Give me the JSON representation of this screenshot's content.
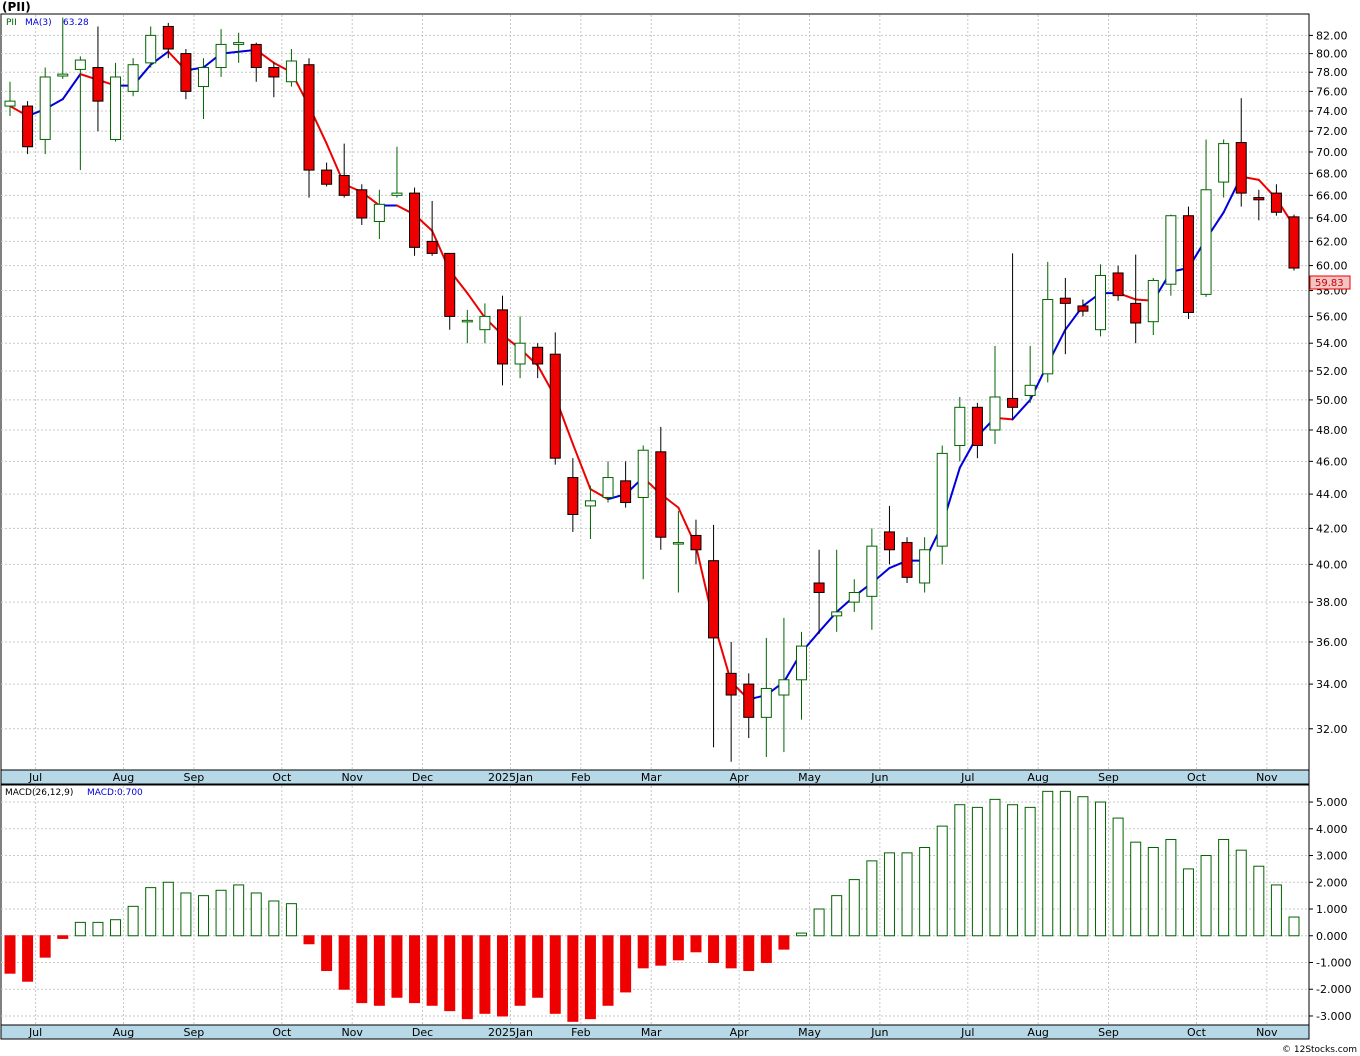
{
  "header": {
    "symbol_label": "(PII)"
  },
  "price_panel": {
    "legend_symbol": "PII",
    "legend_ma": "MA(3)",
    "legend_ma_value": "63.28",
    "last_price_label": "59.83"
  },
  "macd_panel": {
    "legend_params": "MACD(26,12,9)",
    "legend_value": "MACD:0.700"
  },
  "footer": {
    "credit": "© 12Stocks.com"
  },
  "colors": {
    "up_candle": "#006400",
    "down_candle": "#ee0000",
    "ma_up": "#0000dd",
    "ma_down": "#ee0000",
    "axis_band": "#b7d8e6",
    "last_price_box": "#f2c4c4"
  },
  "chart_data": [
    {
      "type": "candlestick",
      "title": "(PII)",
      "period": "weekly",
      "ylim": [
        30.3,
        84.3
      ],
      "y_scale": "log",
      "y_ticks": [
        32,
        34,
        36,
        38,
        40,
        42,
        44,
        46,
        48,
        50,
        52,
        54,
        56,
        58,
        60,
        62,
        64,
        66,
        68,
        70,
        72,
        74,
        76,
        78,
        80,
        82
      ],
      "x_tick_labels": [
        {
          "label": "Jul",
          "bar": 1
        },
        {
          "label": "Aug",
          "bar": 6
        },
        {
          "label": "Sep",
          "bar": 10
        },
        {
          "label": "Oct",
          "bar": 15
        },
        {
          "label": "Nov",
          "bar": 19
        },
        {
          "label": "Dec",
          "bar": 23
        },
        {
          "label": "2025Jan",
          "bar": 28
        },
        {
          "label": "Feb",
          "bar": 32
        },
        {
          "label": "Mar",
          "bar": 36
        },
        {
          "label": "Apr",
          "bar": 41
        },
        {
          "label": "May",
          "bar": 45
        },
        {
          "label": "Jun",
          "bar": 49
        },
        {
          "label": "Jul",
          "bar": 54
        },
        {
          "label": "Aug",
          "bar": 58
        },
        {
          "label": "Sep",
          "bar": 62
        },
        {
          "label": "Oct",
          "bar": 67
        },
        {
          "label": "Nov",
          "bar": 71
        }
      ],
      "ohlc": [
        [
          74.5,
          77.0,
          73.5,
          75.0
        ],
        [
          74.5,
          75.0,
          69.8,
          70.5
        ],
        [
          71.2,
          78.5,
          69.8,
          77.5
        ],
        [
          77.6,
          84.0,
          77.3,
          77.8
        ],
        [
          78.3,
          79.7,
          68.3,
          79.3
        ],
        [
          78.5,
          83.0,
          72.0,
          75.0
        ],
        [
          71.2,
          79.0,
          71.0,
          77.5
        ],
        [
          76.0,
          79.5,
          75.5,
          78.8
        ],
        [
          79.0,
          83.0,
          78.5,
          82.0
        ],
        [
          83.0,
          83.4,
          79.5,
          80.5
        ],
        [
          80.0,
          80.5,
          75.2,
          76.0
        ],
        [
          76.5,
          79.5,
          73.2,
          78.5
        ],
        [
          78.5,
          82.7,
          77.5,
          81.0
        ],
        [
          81.0,
          82.3,
          79.0,
          81.2
        ],
        [
          81.0,
          81.2,
          77.0,
          78.5
        ],
        [
          78.5,
          79.0,
          75.4,
          77.5
        ],
        [
          77.0,
          80.5,
          76.5,
          79.2
        ],
        [
          78.8,
          79.5,
          65.8,
          68.3
        ],
        [
          68.3,
          69.0,
          66.8,
          67.0
        ],
        [
          67.8,
          70.8,
          65.8,
          66.0
        ],
        [
          66.5,
          67.0,
          63.4,
          64.0
        ],
        [
          63.7,
          66.5,
          62.2,
          65.2
        ],
        [
          66.0,
          70.5,
          65.8,
          66.2
        ],
        [
          66.2,
          66.7,
          60.8,
          61.5
        ],
        [
          62.0,
          65.5,
          60.8,
          61.0
        ],
        [
          61.0,
          60.8,
          55.0,
          56.0
        ],
        [
          55.7,
          56.5,
          54.0,
          55.7
        ],
        [
          55.0,
          57.0,
          54.0,
          56.0
        ],
        [
          56.5,
          57.6,
          51.0,
          52.5
        ],
        [
          52.5,
          56.0,
          51.5,
          54.0
        ],
        [
          53.7,
          54.0,
          51.5,
          52.5
        ],
        [
          53.2,
          54.8,
          45.8,
          46.2
        ],
        [
          45.0,
          46.2,
          41.8,
          42.8
        ],
        [
          43.3,
          44.5,
          41.4,
          43.6
        ],
        [
          43.8,
          46.0,
          43.5,
          45.0
        ],
        [
          44.8,
          46.0,
          43.2,
          43.5
        ],
        [
          43.8,
          47.0,
          39.2,
          46.7
        ],
        [
          46.6,
          48.2,
          40.8,
          41.5
        ],
        [
          41.2,
          43.0,
          38.5,
          41.2
        ],
        [
          41.6,
          42.5,
          40.0,
          40.8
        ],
        [
          40.2,
          42.2,
          31.2,
          36.2
        ],
        [
          34.5,
          36.0,
          30.6,
          33.5
        ],
        [
          34.0,
          34.5,
          31.6,
          32.5
        ],
        [
          32.5,
          36.2,
          30.8,
          33.8
        ],
        [
          33.5,
          37.2,
          31.0,
          34.2
        ],
        [
          34.2,
          36.5,
          32.4,
          35.8
        ],
        [
          39.0,
          40.8,
          36.4,
          38.5
        ],
        [
          37.3,
          40.8,
          36.5,
          37.5
        ],
        [
          38.0,
          39.2,
          37.5,
          38.5
        ],
        [
          38.3,
          42.0,
          36.6,
          41.0
        ],
        [
          41.8,
          43.3,
          40.0,
          40.8
        ],
        [
          41.2,
          41.5,
          39.0,
          39.3
        ],
        [
          39.0,
          41.5,
          38.5,
          40.8
        ],
        [
          41.0,
          47.0,
          40.0,
          46.5
        ],
        [
          47.0,
          50.2,
          46.0,
          49.5
        ],
        [
          49.5,
          49.8,
          46.2,
          47.0
        ],
        [
          48.0,
          53.8,
          47.1,
          50.2
        ],
        [
          50.1,
          61.0,
          48.7,
          49.5
        ],
        [
          50.3,
          53.8,
          49.8,
          51.0
        ],
        [
          51.8,
          60.3,
          51.2,
          57.3
        ],
        [
          57.4,
          59.0,
          53.2,
          57.0
        ],
        [
          56.8,
          57.3,
          56.0,
          56.4
        ],
        [
          55.0,
          60.1,
          54.5,
          59.2
        ],
        [
          59.4,
          60.0,
          57.2,
          57.6
        ],
        [
          57.0,
          60.9,
          54.0,
          55.5
        ],
        [
          55.6,
          59.0,
          54.6,
          58.8
        ],
        [
          58.5,
          64.3,
          57.6,
          64.2
        ],
        [
          64.2,
          65.0,
          55.8,
          56.3
        ],
        [
          57.7,
          71.2,
          57.5,
          66.5
        ],
        [
          67.2,
          71.2,
          65.8,
          70.8
        ],
        [
          70.9,
          75.3,
          65.0,
          66.2
        ],
        [
          65.8,
          66.5,
          63.8,
          65.6
        ],
        [
          66.2,
          67.0,
          64.2,
          64.5
        ],
        [
          64.1,
          64.3,
          59.6,
          59.8
        ]
      ],
      "series": [
        {
          "name": "MA(3)",
          "values": [
            74.5,
            73.5,
            74.2,
            75.2,
            77.8,
            77.2,
            76.6,
            76.6,
            78.8,
            80.2,
            78.2,
            78.5,
            80.0,
            80.2,
            80.4,
            79.0,
            78.0,
            74.5,
            70.8,
            67.0,
            66.3,
            65.1,
            65.1,
            64.3,
            62.9,
            59.6,
            57.8,
            55.9,
            54.6,
            53.6,
            52.4,
            50.2,
            47.1,
            44.3,
            43.7,
            44.0,
            45.0,
            44.0,
            43.2,
            41.0,
            37.0,
            34.1,
            33.3,
            33.5,
            34.1,
            35.5,
            36.5,
            37.5,
            38.3,
            39.0,
            39.8,
            40.2,
            40.2,
            42.2,
            45.6,
            47.6,
            48.8,
            48.7,
            50.0,
            52.5,
            55.0,
            56.8,
            57.8,
            57.8,
            57.3,
            57.2,
            59.5,
            59.8,
            62.2,
            64.5,
            67.7,
            67.4,
            65.7,
            63.3
          ]
        }
      ]
    },
    {
      "type": "bar",
      "title": "MACD(26,12,9)",
      "ylim": [
        -3.3,
        5.6
      ],
      "y_ticks": [
        -3.0,
        -2.0,
        -1.0,
        0.0,
        1.0,
        2.0,
        3.0,
        4.0,
        5.0
      ],
      "y_tick_labels": [
        "-3.000",
        "-2.000",
        "-1.000",
        "0.000",
        "1.000",
        "2.000",
        "3.000",
        "4.000",
        "5.000"
      ],
      "x_tick_labels": [
        {
          "label": "Jul",
          "bar": 1
        },
        {
          "label": "Aug",
          "bar": 6
        },
        {
          "label": "Sep",
          "bar": 10
        },
        {
          "label": "Oct",
          "bar": 15
        },
        {
          "label": "Nov",
          "bar": 19
        },
        {
          "label": "Dec",
          "bar": 23
        },
        {
          "label": "2025Jan",
          "bar": 28
        },
        {
          "label": "Feb",
          "bar": 32
        },
        {
          "label": "Mar",
          "bar": 36
        },
        {
          "label": "Apr",
          "bar": 41
        },
        {
          "label": "May",
          "bar": 45
        },
        {
          "label": "Jun",
          "bar": 49
        },
        {
          "label": "Jul",
          "bar": 54
        },
        {
          "label": "Aug",
          "bar": 58
        },
        {
          "label": "Sep",
          "bar": 62
        },
        {
          "label": "Oct",
          "bar": 67
        },
        {
          "label": "Nov",
          "bar": 71
        }
      ],
      "values": [
        -1.4,
        -1.7,
        -0.8,
        -0.1,
        0.5,
        0.5,
        0.6,
        1.1,
        1.8,
        2.0,
        1.6,
        1.5,
        1.7,
        1.9,
        1.6,
        1.3,
        1.2,
        -0.3,
        -1.3,
        -2.0,
        -2.5,
        -2.6,
        -2.3,
        -2.5,
        -2.6,
        -2.8,
        -3.1,
        -2.9,
        -3.0,
        -2.6,
        -2.3,
        -2.9,
        -3.2,
        -3.1,
        -2.6,
        -2.1,
        -1.2,
        -1.1,
        -0.9,
        -0.6,
        -1.0,
        -1.2,
        -1.3,
        -1.0,
        -0.5,
        0.1,
        1.0,
        1.5,
        2.1,
        2.8,
        3.1,
        3.1,
        3.3,
        4.1,
        4.9,
        4.8,
        5.1,
        4.9,
        4.8,
        5.4,
        5.4,
        5.2,
        5.0,
        4.4,
        3.5,
        3.3,
        3.6,
        2.5,
        3.0,
        3.6,
        3.2,
        2.6,
        1.9,
        0.7
      ]
    }
  ]
}
